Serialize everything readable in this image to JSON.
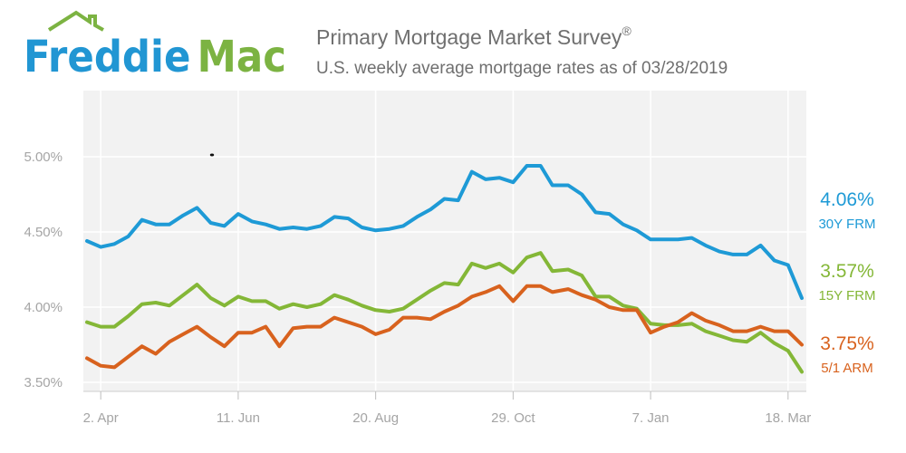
{
  "brand": {
    "name": "Freddie Mac",
    "colors": {
      "freddie": "#2196d3",
      "mac": "#7cb342",
      "roof": "#7cb342"
    }
  },
  "header": {
    "title": "Primary Mortgage Market Survey",
    "title_mark": "®",
    "subtitle": "U.S. weekly average mortgage rates as of 03/28/2019"
  },
  "chart_data": {
    "type": "line",
    "x_labels": [
      "2. Apr",
      "11. Jun",
      "20. Aug",
      "29. Oct",
      "7. Jan",
      "18. Mar"
    ],
    "y_ticks": [
      "3.50%",
      "4.00%",
      "4.50%",
      "5.00%"
    ],
    "ylim": [
      3.5,
      5.5
    ],
    "grid": true,
    "legend": "right, at line ends",
    "x_dates": [
      "2018-03-29",
      "2018-04-05",
      "2018-04-12",
      "2018-04-19",
      "2018-04-26",
      "2018-05-03",
      "2018-05-10",
      "2018-05-17",
      "2018-05-24",
      "2018-05-31",
      "2018-06-07",
      "2018-06-14",
      "2018-06-21",
      "2018-06-28",
      "2018-07-05",
      "2018-07-12",
      "2018-07-19",
      "2018-07-26",
      "2018-08-02",
      "2018-08-09",
      "2018-08-16",
      "2018-08-23",
      "2018-08-30",
      "2018-09-06",
      "2018-09-13",
      "2018-09-20",
      "2018-09-27",
      "2018-10-04",
      "2018-10-11",
      "2018-10-18",
      "2018-10-25",
      "2018-11-01",
      "2018-11-08",
      "2018-11-15",
      "2018-11-21",
      "2018-11-29",
      "2018-12-06",
      "2018-12-13",
      "2018-12-20",
      "2018-12-27",
      "2019-01-03",
      "2019-01-10",
      "2019-01-17",
      "2019-01-24",
      "2019-01-31",
      "2019-02-07",
      "2019-02-14",
      "2019-02-21",
      "2019-02-28",
      "2019-03-07",
      "2019-03-14",
      "2019-03-21",
      "2019-03-28"
    ],
    "series": [
      {
        "name": "30Y FRM",
        "end_label": "4.06%",
        "color": "#1e9ad6",
        "values": [
          4.44,
          4.4,
          4.42,
          4.47,
          4.58,
          4.55,
          4.55,
          4.61,
          4.66,
          4.56,
          4.54,
          4.62,
          4.57,
          4.55,
          4.52,
          4.53,
          4.52,
          4.54,
          4.6,
          4.59,
          4.53,
          4.51,
          4.52,
          4.54,
          4.6,
          4.65,
          4.72,
          4.71,
          4.9,
          4.85,
          4.86,
          4.83,
          4.94,
          4.94,
          4.81,
          4.81,
          4.75,
          4.63,
          4.62,
          4.55,
          4.51,
          4.45,
          4.45,
          4.45,
          4.46,
          4.41,
          4.37,
          4.35,
          4.35,
          4.41,
          4.31,
          4.28,
          4.06
        ]
      },
      {
        "name": "15Y FRM",
        "end_label": "3.57%",
        "color": "#84b737",
        "values": [
          3.9,
          3.87,
          3.87,
          3.94,
          4.02,
          4.03,
          4.01,
          4.08,
          4.15,
          4.06,
          4.01,
          4.07,
          4.04,
          4.04,
          3.99,
          4.02,
          4.0,
          4.02,
          4.08,
          4.05,
          4.01,
          3.98,
          3.97,
          3.99,
          4.05,
          4.11,
          4.16,
          4.15,
          4.29,
          4.26,
          4.29,
          4.23,
          4.33,
          4.36,
          4.24,
          4.25,
          4.21,
          4.07,
          4.07,
          4.01,
          3.99,
          3.89,
          3.88,
          3.88,
          3.89,
          3.84,
          3.81,
          3.78,
          3.77,
          3.83,
          3.76,
          3.71,
          3.57
        ]
      },
      {
        "name": "5/1 ARM",
        "end_label": "3.75%",
        "color": "#d8621e",
        "values": [
          3.66,
          3.61,
          3.6,
          3.67,
          3.74,
          3.69,
          3.77,
          3.82,
          3.87,
          3.8,
          3.74,
          3.83,
          3.83,
          3.87,
          3.74,
          3.86,
          3.87,
          3.87,
          3.93,
          3.9,
          3.87,
          3.82,
          3.85,
          3.93,
          3.93,
          3.92,
          3.97,
          4.01,
          4.07,
          4.1,
          4.14,
          4.04,
          4.14,
          4.14,
          4.1,
          4.12,
          4.08,
          4.05,
          4.0,
          3.98,
          3.98,
          3.83,
          3.87,
          3.9,
          3.96,
          3.91,
          3.88,
          3.84,
          3.84,
          3.87,
          3.84,
          3.84,
          3.75
        ]
      }
    ]
  }
}
